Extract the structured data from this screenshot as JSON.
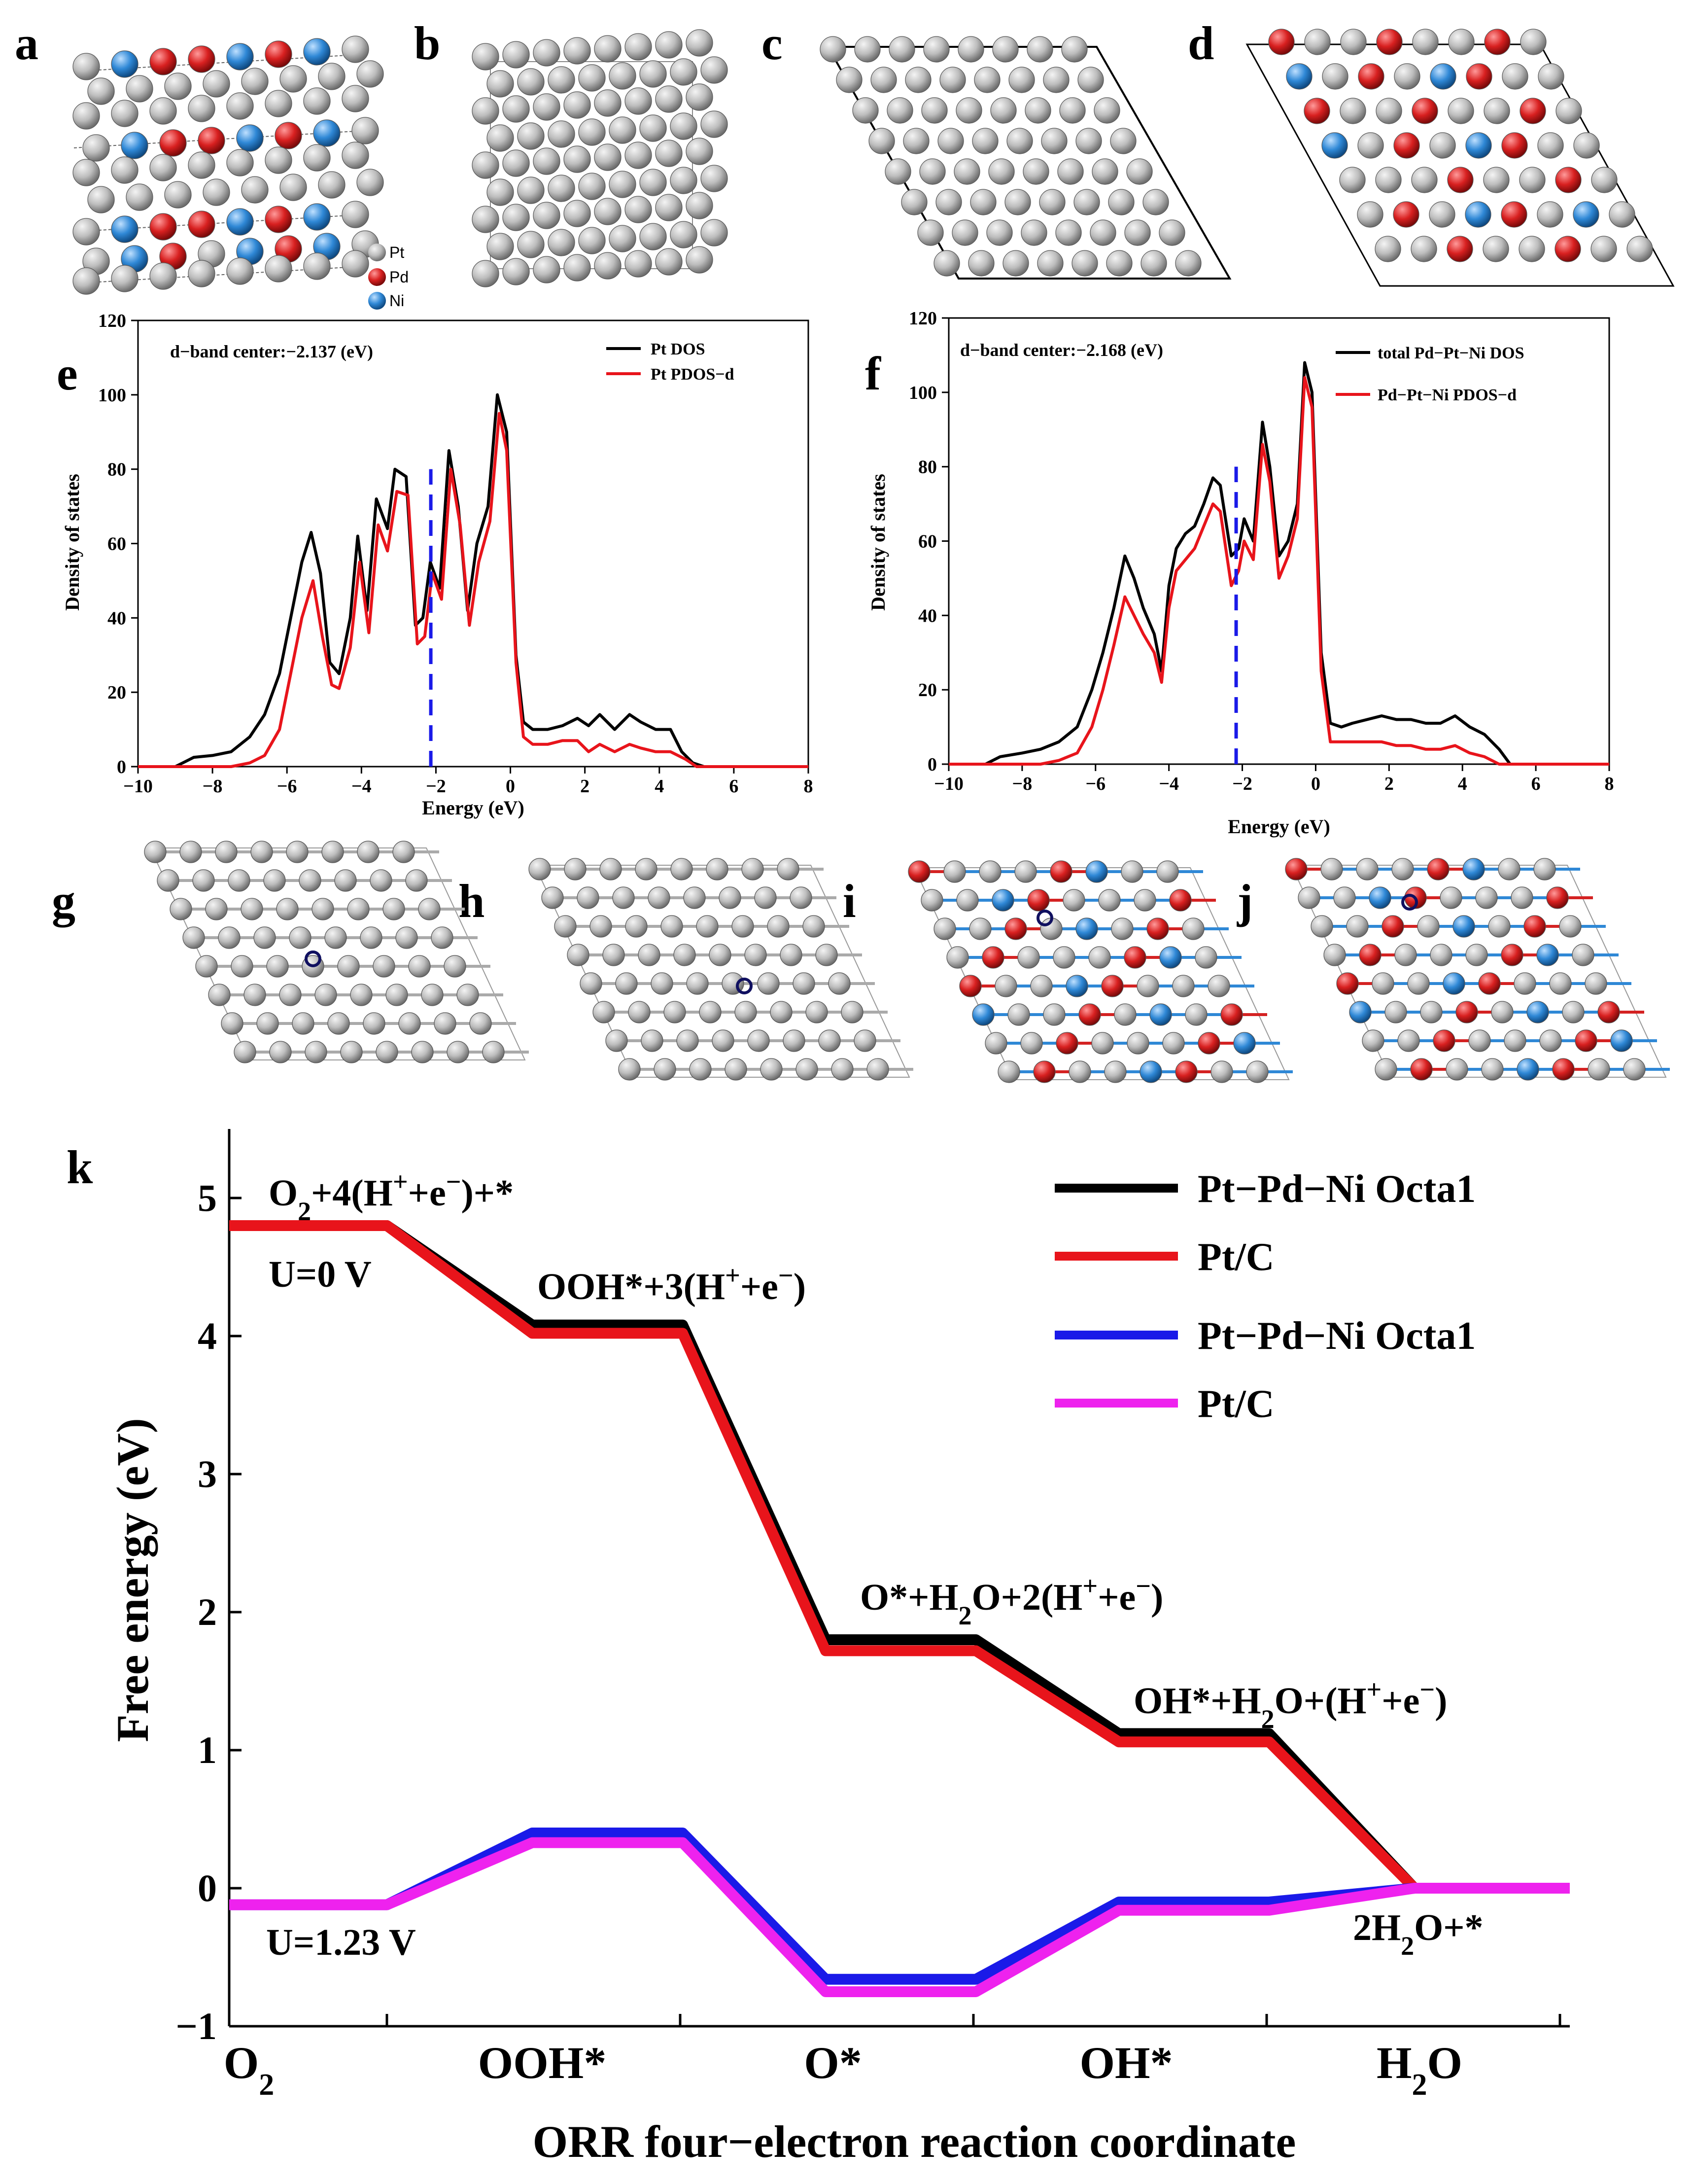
{
  "panels": {
    "a": "a",
    "b": "b",
    "c": "c",
    "d": "d",
    "e": "e",
    "f": "f",
    "g": "g",
    "h": "h",
    "i": "i",
    "j": "j",
    "k": "k"
  },
  "atom_legend": {
    "pt": "Pt",
    "pd": "Pd",
    "ni": "Ni"
  },
  "colors": {
    "pt": "#b9b9b9",
    "pd": "#d42222",
    "ni": "#2f88d6",
    "black": "#000000",
    "red": "#e8141b",
    "blue": "#1a1ae8",
    "magenta": "#ee22ee",
    "dband": "#1a1ae8"
  },
  "chart_data": [
    {
      "id": "e",
      "type": "line",
      "xlabel": "Energy (eV)",
      "ylabel": "Density of states",
      "xlim": [
        -10,
        8
      ],
      "ylim": [
        0,
        120
      ],
      "xticks": [
        "−10",
        "−8",
        "−6",
        "−4",
        "−2",
        "0",
        "2",
        "4",
        "6",
        "8"
      ],
      "yticks": [
        "0",
        "20",
        "40",
        "60",
        "80",
        "100",
        "120"
      ],
      "annotation": "d−band center:−2.137 (eV)",
      "dband_center": -2.137,
      "series": [
        {
          "name": "Pt DOS",
          "color": "#000000",
          "x": [
            -10,
            -9,
            -8.8,
            -8.5,
            -8,
            -7.5,
            -7,
            -6.6,
            -6.2,
            -5.9,
            -5.6,
            -5.35,
            -5.1,
            -4.85,
            -4.6,
            -4.3,
            -4.1,
            -3.85,
            -3.6,
            -3.3,
            -3.1,
            -2.8,
            -2.55,
            -2.35,
            -2.15,
            -1.9,
            -1.65,
            -1.4,
            -1.15,
            -0.9,
            -0.6,
            -0.35,
            -0.1,
            0.15,
            0.35,
            0.6,
            1.0,
            1.4,
            1.8,
            2.1,
            2.4,
            2.8,
            3.2,
            3.5,
            3.9,
            4.3,
            4.6,
            4.9,
            5.2,
            6,
            8
          ],
          "y": [
            0,
            0,
            1,
            2.5,
            3,
            4,
            8,
            14,
            25,
            40,
            55,
            63,
            52,
            28,
            25,
            40,
            62,
            42,
            72,
            64,
            80,
            78,
            38,
            40,
            55,
            48,
            85,
            70,
            42,
            60,
            70,
            100,
            90,
            30,
            12,
            10,
            10,
            11,
            13,
            11,
            14,
            10,
            14,
            12,
            10,
            10,
            4,
            1,
            0,
            0,
            0
          ]
        },
        {
          "name": "Pt PDOS−d",
          "color": "#e8141b",
          "x": [
            -10,
            -7.5,
            -7,
            -6.6,
            -6.2,
            -5.9,
            -5.6,
            -5.3,
            -5.05,
            -4.8,
            -4.6,
            -4.3,
            -4.05,
            -3.8,
            -3.55,
            -3.3,
            -3.05,
            -2.75,
            -2.5,
            -2.3,
            -2.1,
            -1.85,
            -1.6,
            -1.35,
            -1.1,
            -0.85,
            -0.55,
            -0.3,
            -0.1,
            0.15,
            0.35,
            0.6,
            1.0,
            1.4,
            1.8,
            2.1,
            2.4,
            2.8,
            3.2,
            3.5,
            3.9,
            4.3,
            4.7,
            5.0,
            8
          ],
          "y": [
            0,
            0,
            1,
            3,
            10,
            25,
            40,
            50,
            35,
            22,
            21,
            32,
            55,
            36,
            65,
            58,
            74,
            73,
            33,
            35,
            52,
            45,
            80,
            65,
            38,
            55,
            66,
            95,
            85,
            28,
            8,
            6,
            6,
            7,
            7,
            4,
            6,
            4,
            6,
            5,
            4,
            4,
            2,
            0,
            0
          ]
        }
      ]
    },
    {
      "id": "f",
      "type": "line",
      "xlabel": "Energy (eV)",
      "ylabel": "Density of states",
      "xlim": [
        -10,
        8
      ],
      "ylim": [
        0,
        120
      ],
      "xticks": [
        "−10",
        "−8",
        "−6",
        "−4",
        "−2",
        "0",
        "2",
        "4",
        "6",
        "8"
      ],
      "yticks": [
        "0",
        "20",
        "40",
        "60",
        "80",
        "100",
        "120"
      ],
      "annotation": "d−band center:−2.168 (eV)",
      "dband_center": -2.168,
      "series": [
        {
          "name": "total Pd−Pt−Ni DOS",
          "color": "#000000",
          "x": [
            -10,
            -9,
            -8.6,
            -8,
            -7.5,
            -7,
            -6.5,
            -6.1,
            -5.8,
            -5.5,
            -5.2,
            -4.95,
            -4.7,
            -4.4,
            -4.2,
            -4.0,
            -3.8,
            -3.55,
            -3.3,
            -3.05,
            -2.8,
            -2.6,
            -2.3,
            -2.1,
            -1.95,
            -1.7,
            -1.45,
            -1.25,
            -1.0,
            -0.75,
            -0.5,
            -0.3,
            -0.1,
            0.15,
            0.4,
            0.7,
            1.0,
            1.4,
            1.8,
            2.2,
            2.6,
            3.0,
            3.4,
            3.8,
            4.2,
            4.6,
            5.0,
            5.3,
            6,
            8
          ],
          "y": [
            0,
            0,
            2,
            3,
            4,
            6,
            10,
            20,
            30,
            42,
            56,
            50,
            42,
            35,
            25,
            48,
            58,
            62,
            64,
            70,
            77,
            75,
            56,
            58,
            66,
            60,
            92,
            80,
            56,
            60,
            70,
            108,
            100,
            30,
            11,
            10,
            11,
            12,
            13,
            12,
            12,
            11,
            11,
            13,
            10,
            8,
            4,
            0,
            0,
            0
          ]
        },
        {
          "name": "Pd−Pt−Ni PDOS−d",
          "color": "#e8141b",
          "x": [
            -10,
            -7.5,
            -7,
            -6.5,
            -6.1,
            -5.8,
            -5.5,
            -5.2,
            -4.95,
            -4.7,
            -4.4,
            -4.2,
            -4.0,
            -3.8,
            -3.55,
            -3.3,
            -3.05,
            -2.8,
            -2.6,
            -2.3,
            -2.1,
            -1.95,
            -1.7,
            -1.45,
            -1.25,
            -1.0,
            -0.75,
            -0.5,
            -0.3,
            -0.1,
            0.15,
            0.4,
            0.7,
            1.0,
            1.4,
            1.8,
            2.2,
            2.6,
            3.0,
            3.4,
            3.8,
            4.2,
            4.6,
            5.0,
            8
          ],
          "y": [
            0,
            0,
            1,
            3,
            10,
            20,
            32,
            45,
            40,
            35,
            30,
            22,
            42,
            52,
            55,
            58,
            64,
            70,
            68,
            48,
            52,
            60,
            55,
            86,
            76,
            50,
            56,
            66,
            104,
            96,
            25,
            6,
            6,
            6,
            6,
            6,
            5,
            5,
            4,
            4,
            5,
            3,
            2,
            0,
            0
          ]
        }
      ]
    },
    {
      "id": "k",
      "type": "line",
      "title": "",
      "xlabel": "ORR four−electron reaction coordinate",
      "ylabel": "Free energy (eV)",
      "ylim": [
        -1,
        5.5
      ],
      "yticks": [
        "−1",
        "0",
        "1",
        "2",
        "3",
        "4",
        "5"
      ],
      "categories": [
        "O₂",
        "OOH*",
        "O*",
        "OH*",
        "H₂O"
      ],
      "series": [
        {
          "name": "Pt−Pd−Ni Octa1",
          "potential": "U=0 V",
          "color": "#000000",
          "values": [
            4.8,
            4.08,
            1.8,
            1.12,
            0.0
          ]
        },
        {
          "name": "Pt/C",
          "potential": "U=0 V",
          "color": "#e8141b",
          "values": [
            4.8,
            4.02,
            1.72,
            1.06,
            0.0
          ]
        },
        {
          "name": "Pt−Pd−Ni Octa1",
          "potential": "U=1.23 V",
          "color": "#1a1ae8",
          "values": [
            -0.12,
            0.4,
            -0.66,
            -0.1,
            0.0
          ]
        },
        {
          "name": "Pt/C",
          "potential": "U=1.23 V",
          "color": "#ee22ee",
          "values": [
            -0.12,
            0.33,
            -0.75,
            -0.16,
            0.0
          ]
        }
      ],
      "annotations": {
        "step0": "O₂+4(H⁺+e⁻)+*",
        "step1": "OOH*+3(H⁺+e⁻)",
        "step2": "O*+H₂O+2(H⁺+e⁻)",
        "step3": "OH*+H₂O+(H⁺+e⁻)",
        "step4": "2H₂O+*",
        "u0": "U=0 V",
        "u123": "U=1.23 V"
      }
    }
  ]
}
